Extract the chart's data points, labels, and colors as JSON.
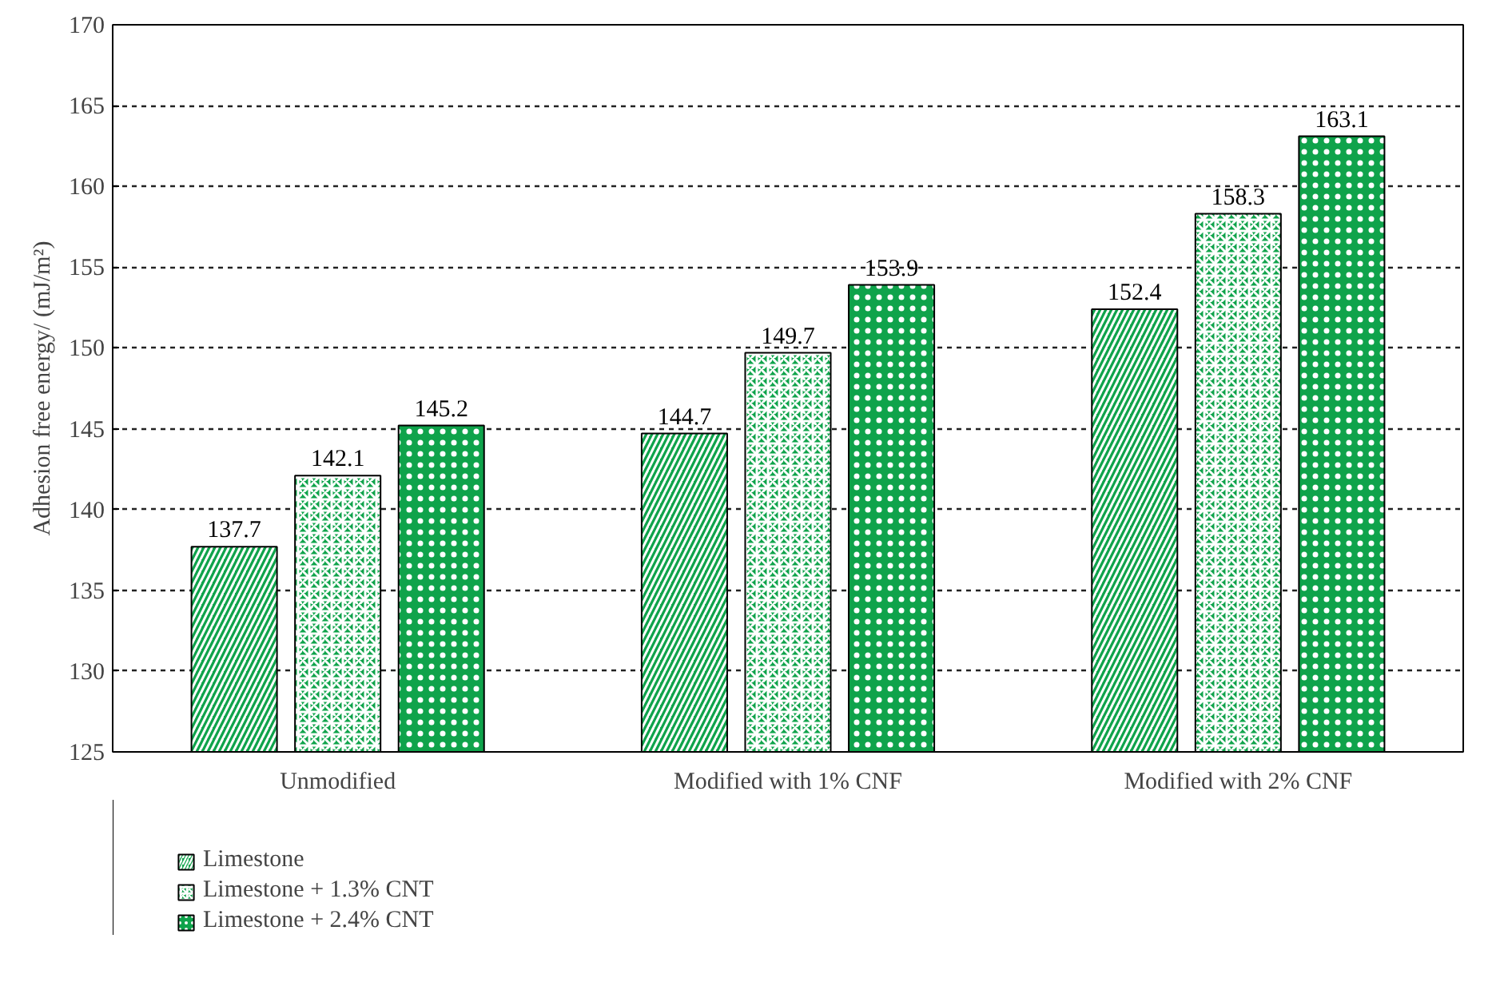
{
  "chart_data": {
    "type": "bar",
    "ylabel": "Adhesion free energy/ (mJ/m²)",
    "categories": [
      "Unmodified",
      "Modified with 1% CNF",
      "Modified with 2% CNF"
    ],
    "series": [
      {
        "name": "Limestone",
        "color": "#0fa34b",
        "values": [
          137.7,
          144.7,
          152.4
        ]
      },
      {
        "name": "Limestone + 1.3% CNT",
        "color": "#0fa34b",
        "values": [
          142.1,
          149.7,
          158.3
        ]
      },
      {
        "name": "Limestone + 2.4% CNT",
        "color": "#0fa34b",
        "values": [
          145.2,
          153.9,
          163.1
        ]
      }
    ],
    "ylim": [
      125,
      170
    ],
    "yticks": [
      125,
      130,
      135,
      140,
      145,
      150,
      155,
      160,
      165,
      170
    ],
    "grid": "y",
    "legend": "bottom left",
    "data_labels": true
  }
}
